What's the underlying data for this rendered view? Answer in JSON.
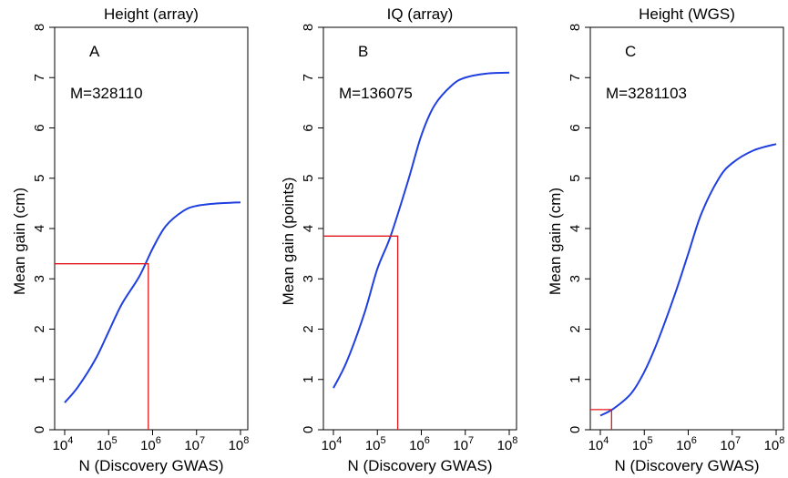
{
  "colors": {
    "curve": "#1f3fe0",
    "marker": "#e0181b"
  },
  "chart_data": [
    {
      "type": "line",
      "title": "Height (array)",
      "panel_label": "A",
      "annotation": "M=328110",
      "xlabel": "N (Discovery GWAS)",
      "ylabel": "Mean gain (cm)",
      "x_scale": "log10",
      "xlim": [
        10000,
        100000000
      ],
      "ylim": [
        0,
        8
      ],
      "x_ticks": [
        {
          "base": "10",
          "exp": "4"
        },
        {
          "base": "10",
          "exp": "5"
        },
        {
          "base": "10",
          "exp": "6"
        },
        {
          "base": "10",
          "exp": "7"
        },
        {
          "base": "10",
          "exp": "8"
        }
      ],
      "y_ticks": [
        "0",
        "1",
        "2",
        "3",
        "4",
        "5",
        "6",
        "7",
        "8"
      ],
      "series": [
        {
          "x": [
            10000,
            20000,
            50000,
            100000,
            200000,
            500000,
            1000000,
            2000000,
            5000000,
            10000000,
            30000000,
            100000000
          ],
          "y": [
            0.54,
            0.85,
            1.4,
            1.95,
            2.5,
            3.05,
            3.6,
            4.05,
            4.35,
            4.45,
            4.5,
            4.52
          ]
        }
      ],
      "marker_point": {
        "x": 800000,
        "y": 3.3
      }
    },
    {
      "type": "line",
      "title": "IQ (array)",
      "panel_label": "B",
      "annotation": "M=136075",
      "xlabel": "N (Discovery GWAS)",
      "ylabel": "Mean gain (points)",
      "x_scale": "log10",
      "xlim": [
        10000,
        100000000
      ],
      "ylim": [
        0,
        8
      ],
      "x_ticks": [
        {
          "base": "10",
          "exp": "4"
        },
        {
          "base": "10",
          "exp": "5"
        },
        {
          "base": "10",
          "exp": "6"
        },
        {
          "base": "10",
          "exp": "7"
        },
        {
          "base": "10",
          "exp": "8"
        }
      ],
      "y_ticks": [
        "0",
        "1",
        "2",
        "3",
        "4",
        "5",
        "6",
        "7",
        "8"
      ],
      "series": [
        {
          "x": [
            10000,
            20000,
            50000,
            100000,
            200000,
            500000,
            1000000,
            2000000,
            5000000,
            10000000,
            30000000,
            100000000
          ],
          "y": [
            0.83,
            1.35,
            2.3,
            3.2,
            3.85,
            4.95,
            5.85,
            6.45,
            6.85,
            7.0,
            7.08,
            7.1
          ]
        }
      ],
      "marker_point": {
        "x": 290000,
        "y": 3.85
      }
    },
    {
      "type": "line",
      "title": "Height (WGS)",
      "panel_label": "C",
      "annotation": "M=3281103",
      "xlabel": "N (Discovery GWAS)",
      "ylabel": "Mean gain (cm)",
      "x_scale": "log10",
      "xlim": [
        10000,
        100000000
      ],
      "ylim": [
        0,
        8
      ],
      "x_ticks": [
        {
          "base": "10",
          "exp": "4"
        },
        {
          "base": "10",
          "exp": "5"
        },
        {
          "base": "10",
          "exp": "6"
        },
        {
          "base": "10",
          "exp": "7"
        },
        {
          "base": "10",
          "exp": "8"
        }
      ],
      "y_ticks": [
        "0",
        "1",
        "2",
        "3",
        "4",
        "5",
        "6",
        "7",
        "8"
      ],
      "series": [
        {
          "x": [
            10000,
            20000,
            50000,
            100000,
            200000,
            500000,
            1000000,
            2000000,
            5000000,
            10000000,
            30000000,
            100000000
          ],
          "y": [
            0.28,
            0.42,
            0.72,
            1.15,
            1.75,
            2.7,
            3.5,
            4.3,
            5.0,
            5.3,
            5.55,
            5.68
          ]
        }
      ],
      "marker_point": {
        "x": 18000,
        "y": 0.4
      }
    }
  ]
}
